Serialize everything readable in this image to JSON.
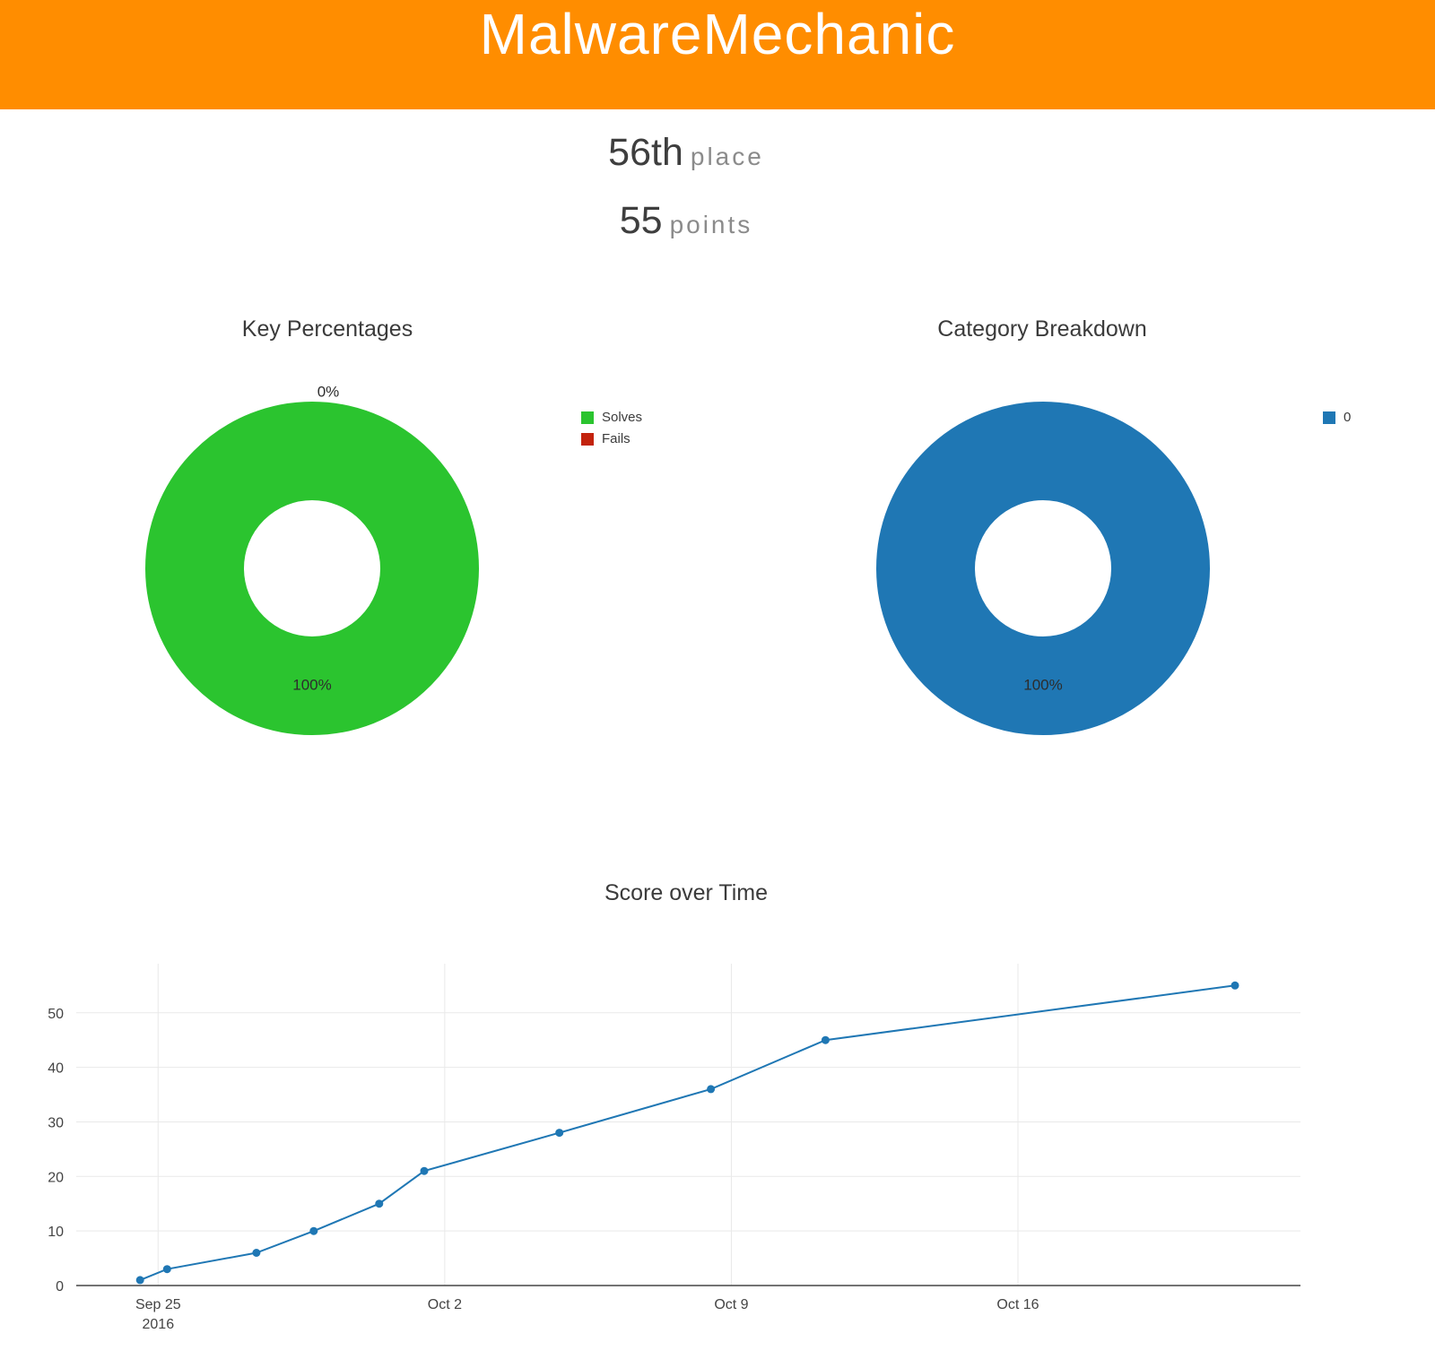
{
  "header": {
    "title": "MalwareMechanic"
  },
  "stats": {
    "place_value": "56th",
    "place_label": "place",
    "points_value": "55",
    "points_label": "points"
  },
  "colors": {
    "header_bg": "#FF8D00",
    "solves_green": "#2BC42F",
    "fails_red": "#C3230D",
    "line_blue": "#1F77B4"
  },
  "chart_data": [
    {
      "id": "key-percentages",
      "type": "pie",
      "title": "Key Percentages",
      "labels": [
        "Solves",
        "Fails"
      ],
      "values": [
        100,
        0
      ],
      "slice_labels": [
        "100%",
        "0%"
      ],
      "colors": [
        "#2BC42F",
        "#C3230D"
      ],
      "hole": 0.41,
      "legend_position": "right",
      "legend": [
        {
          "label": "Solves",
          "color": "#2BC42F"
        },
        {
          "label": "Fails",
          "color": "#C3230D"
        }
      ]
    },
    {
      "id": "category-breakdown",
      "type": "pie",
      "title": "Category Breakdown",
      "labels": [
        "0"
      ],
      "values": [
        100
      ],
      "slice_labels": [
        "100%"
      ],
      "colors": [
        "#1F77B4"
      ],
      "hole": 0.41,
      "legend_position": "right",
      "legend": [
        {
          "label": "0",
          "color": "#1F77B4"
        }
      ]
    },
    {
      "id": "score-over-time",
      "type": "line",
      "title": "Score over Time",
      "grid": true,
      "xlim_days": [
        -2.0,
        27.9
      ],
      "ylim": [
        0,
        59
      ],
      "yticks": [
        0,
        10,
        20,
        30,
        40,
        50
      ],
      "xticks": [
        {
          "day": 0,
          "label": "Sep 25",
          "sublabel": "2016"
        },
        {
          "day": 7,
          "label": "Oct 2"
        },
        {
          "day": 14,
          "label": "Oct 9"
        },
        {
          "day": 21,
          "label": "Oct 16"
        }
      ],
      "series": [
        {
          "name": "score",
          "color": "#1F77B4",
          "x_dates": [
            "2016-09-24 13:00",
            "2016-09-25 05:00",
            "2016-09-27 10:00",
            "2016-09-28 19:00",
            "2016-09-30 10:00",
            "2016-10-01 12:00",
            "2016-10-04 19:00",
            "2016-10-08 12:00",
            "2016-10-11 07:00",
            "2016-10-21 07:00"
          ],
          "x_days": [
            -0.44,
            0.22,
            2.4,
            3.8,
            5.4,
            6.5,
            9.8,
            13.5,
            16.3,
            26.3
          ],
          "y": [
            1,
            3,
            6,
            10,
            15,
            21,
            28,
            36,
            45,
            55
          ]
        }
      ]
    }
  ]
}
